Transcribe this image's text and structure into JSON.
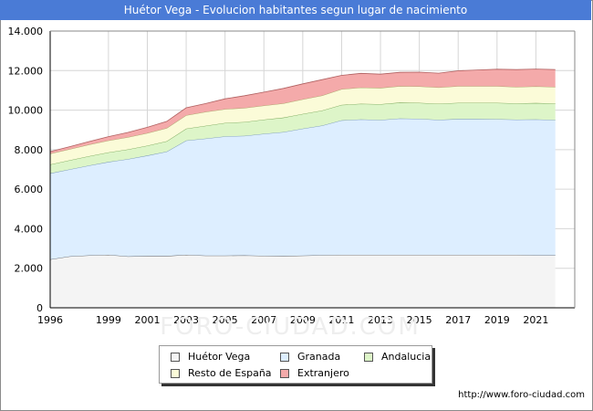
{
  "title": "Huétor Vega - Evolucion habitantes segun lugar de nacimiento",
  "url": "http://www.foro-ciudad.com",
  "watermark": "FORO-CIUDAD.COM",
  "colors": {
    "title_bg": "#4a7bd6",
    "grid": "#d6d6d6"
  },
  "chart_data": {
    "type": "area",
    "stacked": true,
    "title": "Huétor Vega - Evolucion habitantes segun lugar de nacimiento",
    "x": [
      1996,
      1997,
      1998,
      1999,
      2000,
      2001,
      2002,
      2003,
      2004,
      2005,
      2006,
      2007,
      2008,
      2009,
      2010,
      2011,
      2012,
      2013,
      2014,
      2015,
      2016,
      2017,
      2018,
      2019,
      2020,
      2021,
      2022
    ],
    "x_ticks": [
      1996,
      1999,
      2001,
      2003,
      2005,
      2007,
      2009,
      2011,
      2013,
      2015,
      2017,
      2019,
      2021
    ],
    "y_ticks": [
      0,
      2000,
      4000,
      6000,
      8000,
      10000,
      12000,
      14000
    ],
    "y_tick_labels": [
      "0",
      "2.000",
      "4.000",
      "6.000",
      "8.000",
      "10.000",
      "12.000",
      "14.000"
    ],
    "xlim": [
      1996,
      2023
    ],
    "ylim": [
      0,
      14000
    ],
    "grid": true,
    "legend_position": "bottom",
    "series": [
      {
        "name": "Huétor Vega",
        "color": "#f4f4f4",
        "line": "#555555",
        "values": [
          2450,
          2600,
          2650,
          2680,
          2600,
          2620,
          2620,
          2680,
          2640,
          2640,
          2650,
          2630,
          2620,
          2640,
          2660,
          2680,
          2680,
          2680,
          2680,
          2680,
          2680,
          2680,
          2680,
          2680,
          2680,
          2650,
          2650
        ]
      },
      {
        "name": "Granada",
        "color": "#ddeeff",
        "line": "#7090b0",
        "values": [
          4350,
          4400,
          4550,
          4700,
          4920,
          5080,
          5280,
          5780,
          5920,
          6030,
          6050,
          6170,
          6270,
          6420,
          6560,
          6800,
          6850,
          6820,
          6900,
          6880,
          6830,
          6870,
          6870,
          6860,
          6840,
          6880,
          6850
        ]
      },
      {
        "name": "Andalucia",
        "color": "#ddf5c8",
        "line": "#70a050",
        "values": [
          450,
          460,
          470,
          480,
          490,
          500,
          530,
          600,
          650,
          680,
          700,
          720,
          730,
          750,
          760,
          780,
          790,
          800,
          800,
          810,
          810,
          820,
          820,
          830,
          820,
          830,
          830
        ]
      },
      {
        "name": "Resto de España",
        "color": "#fbfbd8",
        "line": "#a0a060",
        "values": [
          550,
          560,
          580,
          600,
          620,
          640,
          660,
          680,
          700,
          700,
          710,
          710,
          720,
          740,
          760,
          800,
          820,
          820,
          830,
          830,
          830,
          840,
          840,
          840,
          830,
          840,
          840
        ]
      },
      {
        "name": "Extranjero",
        "color": "#f4aaaa",
        "line": "#b06060",
        "values": [
          100,
          130,
          160,
          200,
          240,
          290,
          340,
          380,
          420,
          520,
          620,
          680,
          760,
          780,
          800,
          700,
          720,
          700,
          700,
          720,
          720,
          780,
          820,
          860,
          880,
          880,
          880
        ]
      }
    ]
  }
}
